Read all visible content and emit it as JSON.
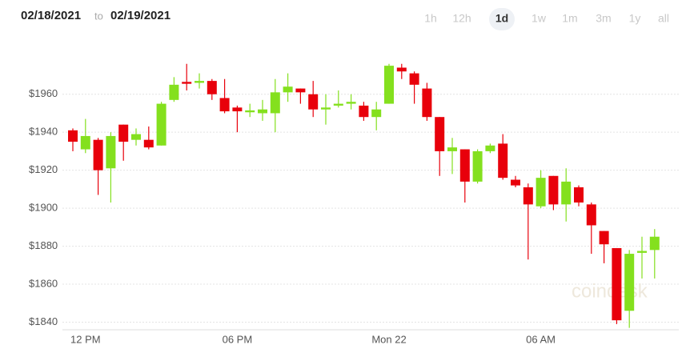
{
  "header": {
    "date_from": "02/18/2021",
    "separator": "to",
    "date_to": "02/19/2021",
    "ranges": [
      "1h",
      "12h",
      "1d",
      "1w",
      "1m",
      "3m",
      "1y",
      "all"
    ],
    "selected_range": 2
  },
  "chart_data": {
    "type": "candlestick",
    "watermark": "coindesk",
    "categories": [
      null,
      "12 PM",
      null,
      null,
      null,
      null,
      null,
      null,
      null,
      null,
      null,
      null,
      null,
      "06 PM",
      null,
      null,
      null,
      null,
      null,
      null,
      null,
      null,
      null,
      null,
      null,
      "Mon 22",
      null,
      null,
      null,
      null,
      null,
      null,
      null,
      null,
      null,
      null,
      null,
      "06 AM",
      null,
      null,
      null,
      null,
      null,
      null,
      null,
      null,
      null
    ],
    "open": [
      1941,
      1931,
      1936,
      1921,
      1944,
      1936,
      1936,
      1933,
      1957,
      1966.5,
      1966,
      1967,
      1958,
      1953,
      1950.5,
      1950,
      1950,
      1961,
      1963,
      1960,
      1952,
      1954,
      1955,
      1954,
      1948,
      1955,
      1974,
      1971,
      1963,
      1948,
      1930,
      1931,
      1914,
      1930,
      1934,
      1915,
      1911,
      1901,
      1917,
      1902,
      1911,
      1902,
      1888,
      1879,
      1846,
      1876.5,
      1878
    ],
    "high": [
      1942,
      1947,
      1937,
      1940,
      1944,
      1942,
      1943,
      1956,
      1969,
      1976,
      1971,
      1968,
      1968,
      1954,
      1955,
      1957,
      1968,
      1971,
      1963,
      1967,
      1960,
      1962,
      1960,
      1956,
      1956,
      1976,
      1976,
      1972,
      1966,
      1948,
      1937,
      1931,
      1931,
      1934,
      1939,
      1917,
      1913,
      1920,
      1917,
      1921,
      1912,
      1903,
      1888,
      1879,
      1878,
      1885,
      1889
    ],
    "low": [
      1930,
      1929,
      1907,
      1903,
      1925,
      1933,
      1931,
      1933,
      1956,
      1962,
      1963,
      1957,
      1950,
      1940,
      1948,
      1946,
      1940,
      1956,
      1955,
      1948,
      1944,
      1953,
      1952,
      1946,
      1941,
      1955,
      1968,
      1955,
      1946,
      1917,
      1918,
      1903,
      1913,
      1929,
      1915,
      1911,
      1873,
      1900,
      1899,
      1893,
      1901,
      1876,
      1871,
      1839,
      1837,
      1863,
      1863
    ],
    "close": [
      1935,
      1938,
      1920,
      1938,
      1935,
      1939,
      1932,
      1955,
      1965,
      1965.5,
      1967,
      1960,
      1951,
      1951,
      1951.5,
      1952,
      1961,
      1964,
      1961,
      1952,
      1953,
      1955,
      1956,
      1948,
      1952,
      1975,
      1972,
      1965,
      1948,
      1930,
      1932,
      1914,
      1930,
      1933,
      1916,
      1912,
      1902,
      1916,
      1902,
      1914,
      1903,
      1891,
      1881,
      1841,
      1876,
      1877.5,
      1885
    ],
    "up_color": "#84e01e",
    "down_color": "#e8000b",
    "ylim": [
      1836,
      1978
    ],
    "yticks": [
      {
        "value": 1840,
        "label": "$1840"
      },
      {
        "value": 1860,
        "label": "$1860"
      },
      {
        "value": 1880,
        "label": "$1880"
      },
      {
        "value": 1900,
        "label": "$1900"
      },
      {
        "value": 1920,
        "label": "$1920"
      },
      {
        "value": 1940,
        "label": "$1940"
      },
      {
        "value": 1960,
        "label": "$1960"
      }
    ],
    "grid": true
  }
}
